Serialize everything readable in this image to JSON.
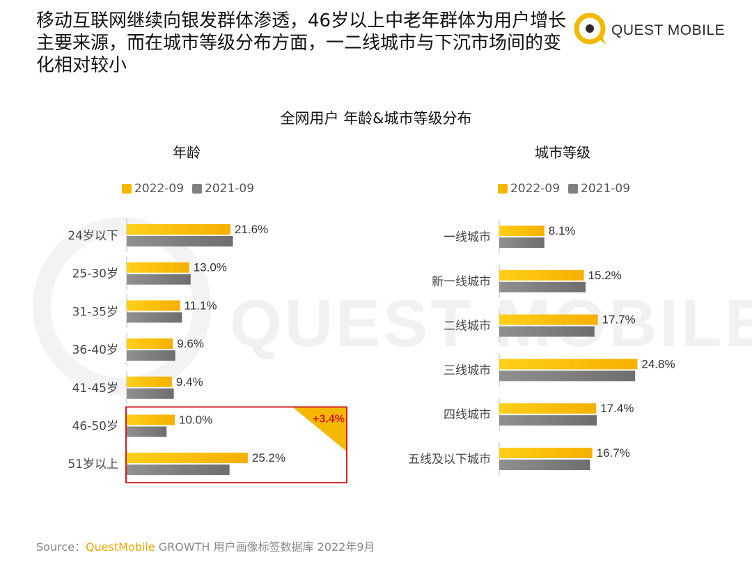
{
  "header": {
    "headline": "移动互联网继续向银发群体渗透，46岁以上中老年群体为用户增长主要来源，而在城市等级分布方面，一二线城市与下沉市场间的变化相对较小",
    "logo_text": "QUEST MOBILE"
  },
  "watermark": "QUEST MOBILE",
  "colors": {
    "series_2022": "#f5b800",
    "series_2021": "#808080",
    "highlight": "#d42020"
  },
  "chart_data": [
    {
      "type": "bar",
      "title": "全网用户 年龄&城市等级分布",
      "subtitle": "年龄",
      "categories": [
        "24岁以下",
        "25-30岁",
        "31-35岁",
        "36-40岁",
        "41-45岁",
        "46-50岁",
        "51岁以上"
      ],
      "series": [
        {
          "name": "2022-09",
          "values": [
            21.6,
            13.0,
            11.1,
            9.6,
            9.4,
            10.0,
            25.2
          ],
          "labels": [
            "21.6%",
            "13.0%",
            "11.1%",
            "9.6%",
            "9.4%",
            "10.0%",
            "25.2%"
          ]
        },
        {
          "name": "2021-09",
          "values": [
            22.1,
            13.3,
            11.5,
            10.1,
            9.8,
            8.3,
            21.4
          ]
        }
      ],
      "annotation": "+3.4%",
      "xlim": [
        0,
        30
      ]
    },
    {
      "type": "bar",
      "subtitle": "城市等级",
      "categories": [
        "一线城市",
        "新一线城市",
        "二线城市",
        "三线城市",
        "四线城市",
        "五线及以下城市"
      ],
      "series": [
        {
          "name": "2022-09",
          "values": [
            8.1,
            15.2,
            17.7,
            24.8,
            17.4,
            16.7
          ],
          "labels": [
            "8.1%",
            "15.2%",
            "17.7%",
            "24.8%",
            "17.4%",
            "16.7%"
          ]
        },
        {
          "name": "2021-09",
          "values": [
            8.1,
            15.5,
            17.1,
            24.4,
            17.5,
            16.3
          ]
        }
      ],
      "xlim": [
        0,
        30
      ]
    }
  ],
  "source": {
    "prefix": "Source：",
    "brand": "QuestMobile",
    "rest": " GROWTH 用户画像标签数据库 2022年9月"
  }
}
